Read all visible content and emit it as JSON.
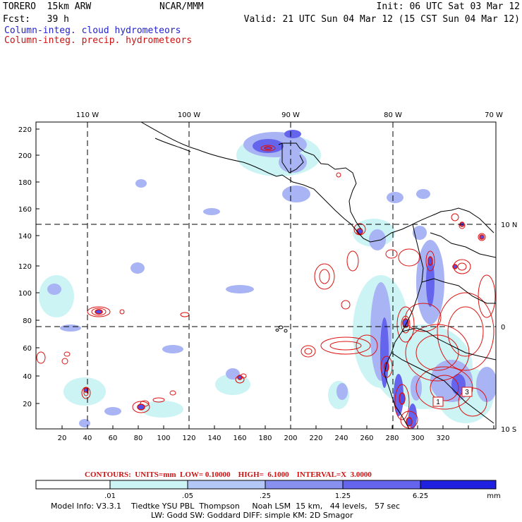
{
  "header": {
    "model": "TORERO  15km ARW",
    "org": "NCAR/MMM",
    "init": "Init: 06 UTC Sat 03 Mar 12",
    "fcst": "Fcst:   39 h",
    "valid": "Valid: 21 UTC Sun 04 Mar 12 (15 CST Sun 04 Mar 12)",
    "line1": "Column-integ. cloud hydrometeors",
    "line2": "Column-integ. precip. hydrometeors"
  },
  "axes": {
    "top_lon": [
      "110 W",
      "100 W",
      "90 W",
      "80 W",
      "70 W"
    ],
    "right_lat": [
      "10 N",
      "0",
      "10 S"
    ],
    "left_y": [
      "220",
      "200",
      "180",
      "160",
      "140",
      "120",
      "100",
      "80",
      "60",
      "40",
      "20"
    ],
    "bottom_x": [
      "20",
      "40",
      "60",
      "80",
      "100",
      "120",
      "140",
      "160",
      "180",
      "200",
      "220",
      "240",
      "260",
      "280",
      "300",
      "320"
    ]
  },
  "contours": {
    "label": "CONTOURS:  UNITS=mm  LOW= 0.10000    HIGH=  6.1000    INTERVAL=X  3.0000",
    "markers": [
      "1",
      "3"
    ]
  },
  "colorbar": {
    "ticks": [
      ".01",
      ".05",
      ".25",
      "1.25",
      "6.25"
    ],
    "unit": "mm",
    "colors": [
      "#ffffff",
      "#ccf4f4",
      "#b4c8f8",
      "#8890f0",
      "#6464ec",
      "#2020e0"
    ]
  },
  "footer": {
    "line1": "Model Info: V3.3.1    Tiedtke YSU PBL  Thompson     Noah LSM  15 km,   44 levels,   57 sec",
    "line2": "LW: Godd SW: Goddard DIFF: simple KM: 2D Smagor"
  },
  "colors": {
    "cloud": "#8890f0",
    "cloud_light": "#ccf4f4",
    "cloud_dark": "#6464ec",
    "precip": "#dd1111"
  }
}
